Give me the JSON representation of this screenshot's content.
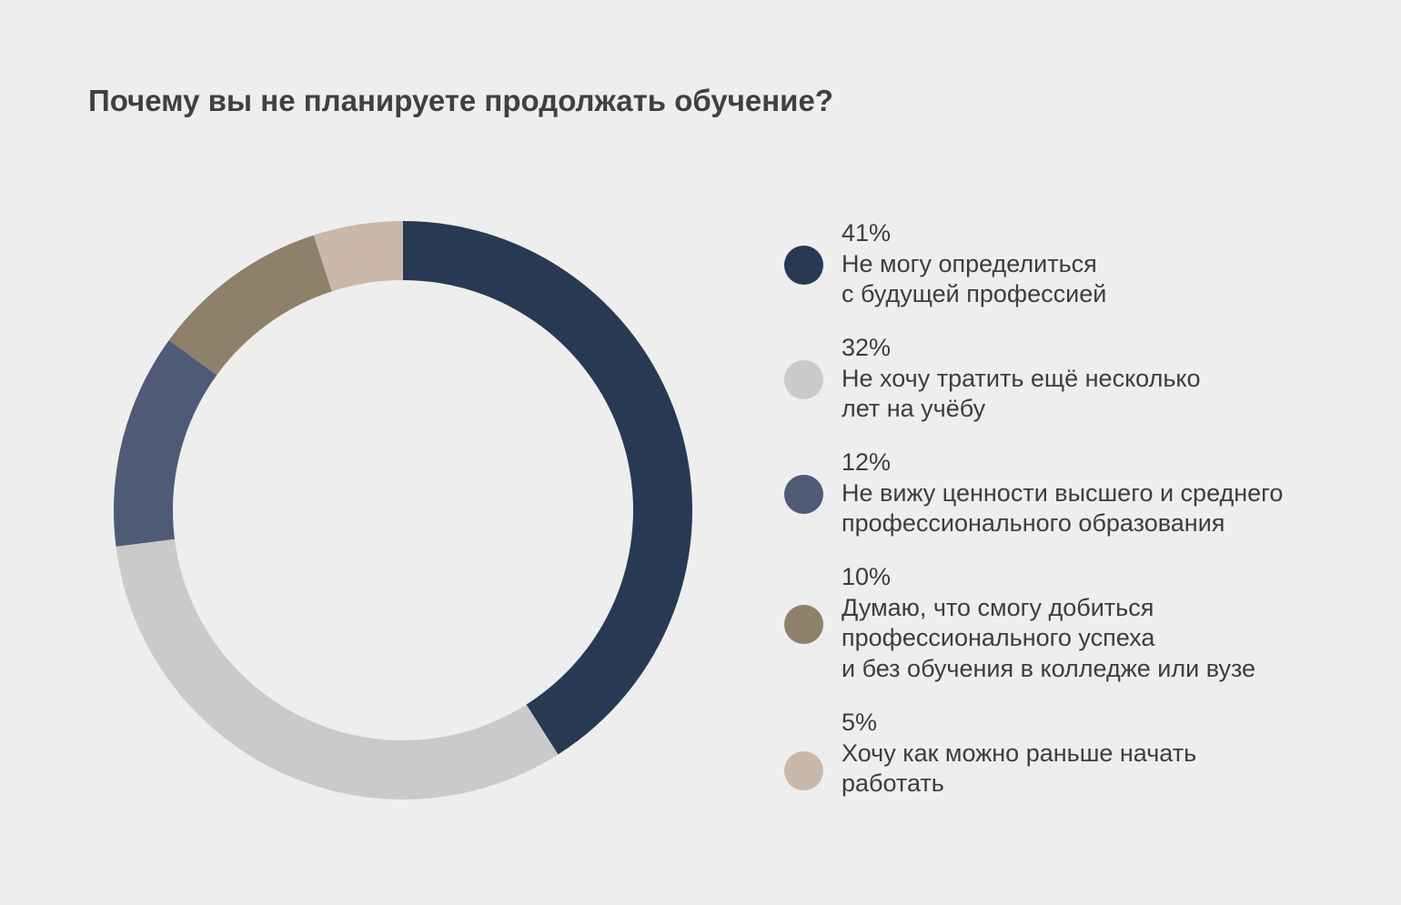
{
  "chart_data": {
    "type": "pie",
    "title": "Почему вы не планируете продолжать обучение?",
    "slices": [
      {
        "value": 41,
        "percent_label": "41%",
        "label_lines": [
          "Не могу определиться",
          "с будущей профессией"
        ],
        "color": "#283954"
      },
      {
        "value": 32,
        "percent_label": "32%",
        "label_lines": [
          "Не хочу тратить ещё несколько",
          "лет на учёбу"
        ],
        "color": "#cacaca"
      },
      {
        "value": 12,
        "percent_label": "12%",
        "label_lines": [
          "Не вижу ценности высшего и среднего",
          "профессионального образования"
        ],
        "color": "#4f5b76"
      },
      {
        "value": 10,
        "percent_label": "10%",
        "label_lines": [
          "Думаю, что смогу добиться",
          "профессионального успеха",
          "и без обучения в колледже или вузе"
        ],
        "color": "#8f806a"
      },
      {
        "value": 5,
        "percent_label": "5%",
        "label_lines": [
          "Хочу как можно раньше начать",
          "работать"
        ],
        "color": "#cab8aa"
      }
    ]
  }
}
